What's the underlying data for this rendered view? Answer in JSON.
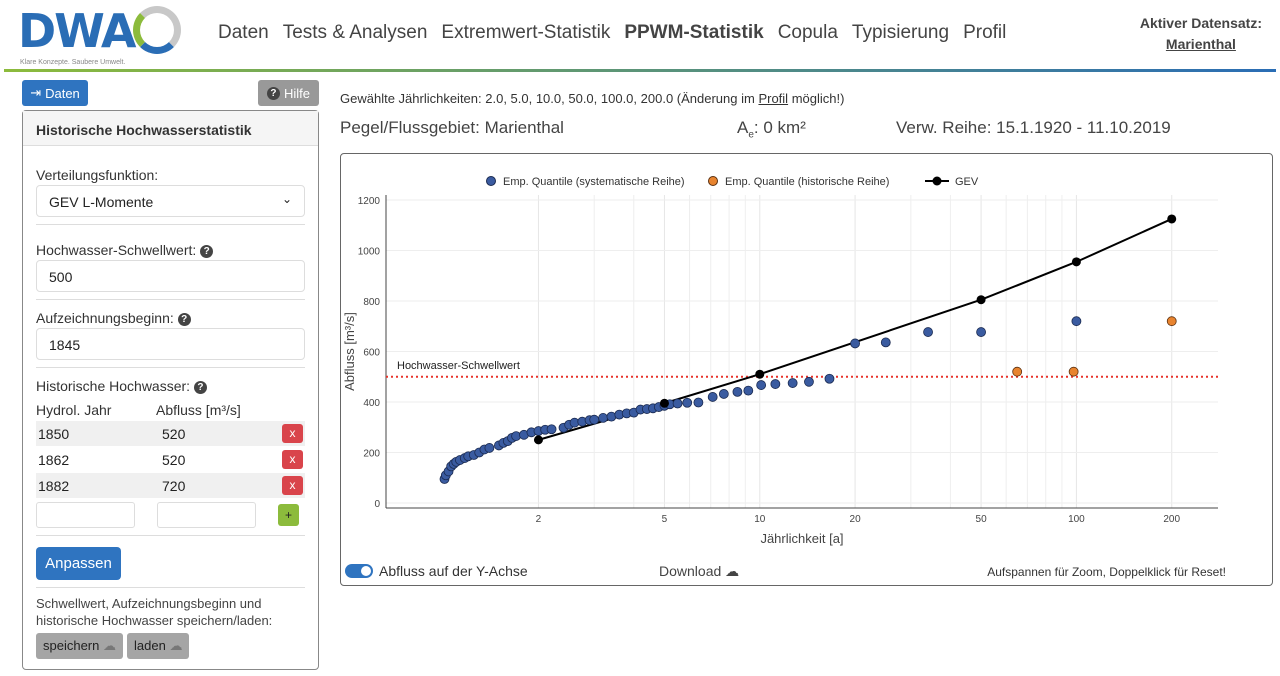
{
  "header": {
    "logo_text": "DWA",
    "logo_tagline": "Klare Konzepte. Saubere Umwelt.",
    "nav": [
      "Daten",
      "Tests & Analysen",
      "Extremwert-Statistik",
      "PPWM-Statistik",
      "Copula",
      "Typisierung",
      "Profil"
    ],
    "active_nav": "PPWM-Statistik",
    "dataset_label": "Aktiver Datensatz:",
    "dataset_value": "Marienthal"
  },
  "buttons": {
    "daten": "Daten",
    "hilfe": "Hilfe"
  },
  "panel": {
    "title": "Historische Hochwasserstatistik",
    "verteilung_label": "Verteilungsfunktion:",
    "verteilung_value": "GEV L-Momente",
    "schwell_label": "Hochwasser-Schwellwert:",
    "schwell_value": "500",
    "beginn_label": "Aufzeichnungsbeginn:",
    "beginn_value": "1845",
    "hist_label": "Historische Hochwasser:",
    "col_jahr": "Hydrol. Jahr",
    "col_abfluss": "Abfluss [m³/s]",
    "rows": [
      {
        "jahr": "1850",
        "abfluss": "520"
      },
      {
        "jahr": "1862",
        "abfluss": "520"
      },
      {
        "jahr": "1882",
        "abfluss": "720"
      }
    ],
    "delete_label": "x",
    "add_label": "+",
    "anpassen": "Anpassen",
    "note": "Schwellwert, Aufzeichnungsbeginn und historische Hochwasser speichern/laden:",
    "speichern": "speichern",
    "laden": "laden"
  },
  "info": {
    "prefix": "Gewählte Jährlichkeiten: 2.0, 5.0, 10.0, 50.0, 100.0, 200.0 (Änderung im",
    "link": "Profil",
    "suffix": "möglich!)",
    "pegel": "Pegel/Flussgebiet: Marienthal",
    "area_prefix": "A",
    "area_sub": "e",
    "area_value": ": 0 km²",
    "reihe": "Verw. Reihe: 15.1.1920 - 11.10.2019"
  },
  "chart_footer": {
    "toggle_label": "Abfluss auf der Y-Achse",
    "download": "Download",
    "hint": "Aufspannen für Zoom, Doppelklick für Reset!"
  },
  "chart_data": {
    "type": "scatter",
    "xscale": "log",
    "xlabel": "Jährlichkeit [a]",
    "ylabel": "Abfluss [m³/s]",
    "xlim": [
      0.66,
      280
    ],
    "ylim": [
      0,
      1200
    ],
    "xticks": [
      2,
      5,
      10,
      20,
      50,
      100,
      200
    ],
    "yticks": [
      0,
      200,
      400,
      600,
      800,
      1000,
      1200
    ],
    "threshold": {
      "value": 500,
      "label": "Hochwasser-Schwellwert",
      "color": "#e8332a"
    },
    "legend": [
      "Emp. Quantile (systematische Reihe)",
      "Emp. Quantile (historische Reihe)",
      "GEV"
    ],
    "colors": {
      "systematic": "#3a5ba0",
      "historic": "#e8842f",
      "gev": "#000000"
    },
    "series": [
      {
        "name": "Emp. Quantile (systematische Reihe)",
        "x": [
          1.01,
          1.02,
          1.04,
          1.06,
          1.08,
          1.1,
          1.13,
          1.17,
          1.2,
          1.25,
          1.3,
          1.35,
          1.4,
          1.5,
          1.55,
          1.6,
          1.65,
          1.7,
          1.8,
          1.9,
          2.0,
          2.1,
          2.2,
          2.4,
          2.5,
          2.6,
          2.75,
          2.9,
          3.0,
          3.2,
          3.4,
          3.6,
          3.8,
          4.0,
          4.2,
          4.4,
          4.6,
          4.8,
          5.0,
          5.2,
          5.5,
          5.9,
          6.4,
          7.1,
          7.7,
          8.5,
          9.2,
          10.1,
          11.2,
          12.7,
          14.3,
          16.6,
          20,
          25,
          34,
          50,
          100
        ],
        "y": [
          95,
          110,
          125,
          145,
          155,
          163,
          170,
          178,
          185,
          190,
          200,
          212,
          218,
          228,
          238,
          245,
          258,
          265,
          270,
          280,
          285,
          290,
          292,
          298,
          310,
          318,
          322,
          328,
          330,
          337,
          342,
          350,
          355,
          358,
          370,
          372,
          375,
          380,
          385,
          391,
          394,
          397,
          398,
          420,
          432,
          440,
          445,
          467,
          471,
          475,
          480,
          492,
          632,
          636,
          677,
          677,
          720
        ]
      },
      {
        "name": "Emp. Quantile (historische Reihe)",
        "x": [
          65,
          98,
          200
        ],
        "y": [
          520,
          520,
          720
        ]
      },
      {
        "name": "GEV",
        "x": [
          2,
          5,
          10,
          50,
          100,
          200
        ],
        "y": [
          250,
          395,
          510,
          805,
          955,
          1125
        ]
      }
    ]
  }
}
